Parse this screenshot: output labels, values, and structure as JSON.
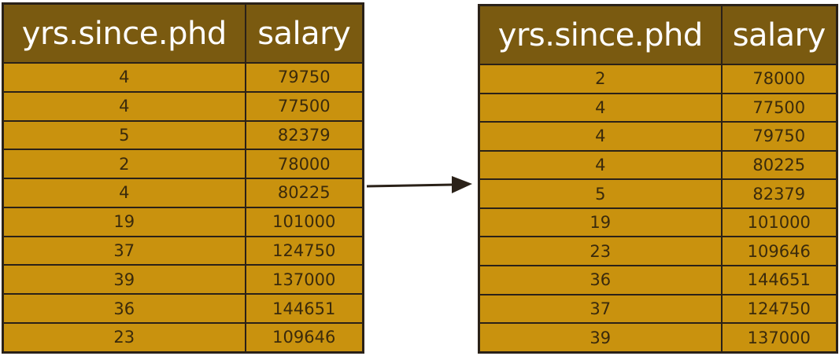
{
  "colors": {
    "header_bg": "#7a5a10",
    "cell_bg": "#c9920e",
    "border": "#2a2118",
    "arrow": "#2a2118"
  },
  "left_table": {
    "headers": [
      "yrs.since.phd",
      "salary"
    ],
    "rows": [
      [
        "4",
        "79750"
      ],
      [
        "4",
        "77500"
      ],
      [
        "5",
        "82379"
      ],
      [
        "2",
        "78000"
      ],
      [
        "4",
        "80225"
      ],
      [
        "19",
        "101000"
      ],
      [
        "37",
        "124750"
      ],
      [
        "39",
        "137000"
      ],
      [
        "36",
        "144651"
      ],
      [
        "23",
        "109646"
      ]
    ]
  },
  "arrow_icon": "right-arrow-icon",
  "right_table": {
    "headers": [
      "yrs.since.phd",
      "salary"
    ],
    "rows": [
      [
        "2",
        "78000"
      ],
      [
        "4",
        "77500"
      ],
      [
        "4",
        "79750"
      ],
      [
        "4",
        "80225"
      ],
      [
        "5",
        "82379"
      ],
      [
        "19",
        "101000"
      ],
      [
        "23",
        "109646"
      ],
      [
        "36",
        "144651"
      ],
      [
        "37",
        "124750"
      ],
      [
        "39",
        "137000"
      ]
    ]
  }
}
